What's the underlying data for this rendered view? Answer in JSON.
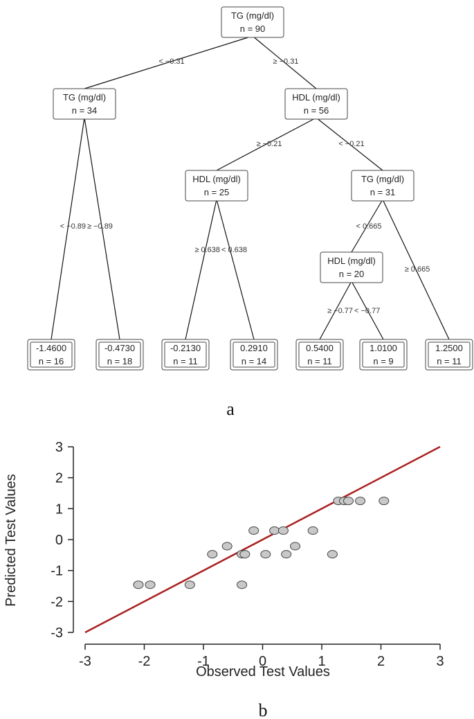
{
  "tree": {
    "panel_label": "a",
    "nodes": [
      {
        "id": "n1",
        "lines": [
          "TG (mg/dl)",
          "n = 90"
        ]
      },
      {
        "id": "n2",
        "lines": [
          "TG (mg/dl)",
          "n = 34"
        ]
      },
      {
        "id": "n3",
        "lines": [
          "HDL (mg/dl)",
          "n = 56"
        ]
      },
      {
        "id": "n4",
        "lines": [
          "HDL (mg/dl)",
          "n = 25"
        ]
      },
      {
        "id": "n5",
        "lines": [
          "TG (mg/dl)",
          "n = 31"
        ]
      },
      {
        "id": "n6",
        "lines": [
          "HDL (mg/dl)",
          "n = 20"
        ]
      },
      {
        "id": "l1",
        "leaf": true,
        "lines": [
          "-1.4600",
          "n = 16"
        ]
      },
      {
        "id": "l2",
        "leaf": true,
        "lines": [
          "-0.4730",
          "n = 18"
        ]
      },
      {
        "id": "l3",
        "leaf": true,
        "lines": [
          "-0.2130",
          "n = 11"
        ]
      },
      {
        "id": "l4",
        "leaf": true,
        "lines": [
          "0.2910",
          "n = 14"
        ]
      },
      {
        "id": "l5",
        "leaf": true,
        "lines": [
          "0.5400",
          "n = 11"
        ]
      },
      {
        "id": "l6",
        "leaf": true,
        "lines": [
          "1.0100",
          "n = 9"
        ]
      },
      {
        "id": "l7",
        "leaf": true,
        "lines": [
          "1.2500",
          "n = 11"
        ]
      }
    ],
    "edges": [
      {
        "from": "n1",
        "to": "n2",
        "label": "< −0.31"
      },
      {
        "from": "n1",
        "to": "n3",
        "label": "≥ −0.31"
      },
      {
        "from": "n2",
        "to": "l1",
        "label": "< −0.89"
      },
      {
        "from": "n2",
        "to": "l2",
        "label": "≥ −0.89"
      },
      {
        "from": "n3",
        "to": "n4",
        "label": "≥ −0.21"
      },
      {
        "from": "n3",
        "to": "n5",
        "label": "< −0.21"
      },
      {
        "from": "n4",
        "to": "l3",
        "label": "≥ 0.638"
      },
      {
        "from": "n4",
        "to": "l4",
        "label": "< 0.638"
      },
      {
        "from": "n5",
        "to": "n6",
        "label": "< 0.665"
      },
      {
        "from": "n5",
        "to": "l7",
        "label": "≥ 0.665"
      },
      {
        "from": "n6",
        "to": "l5",
        "label": "≥ −0.77"
      },
      {
        "from": "n6",
        "to": "l6",
        "label": "< −0.77"
      }
    ]
  },
  "chart_data": {
    "type": "scatter",
    "panel_label": "b",
    "title": "",
    "xlabel": "Observed Test Values",
    "ylabel": "Predicted Test Values",
    "xlim": [
      -3,
      3
    ],
    "ylim": [
      -3,
      3
    ],
    "xticks": [
      -3,
      -2,
      -1,
      0,
      1,
      2,
      3
    ],
    "yticks": [
      -3,
      -2,
      -1,
      0,
      1,
      2,
      3
    ],
    "grid": false,
    "legend": "none",
    "point_color": "#c8c8c8",
    "line_color": "#aa1f1f",
    "reference_line": {
      "x": [
        -3,
        3
      ],
      "y": [
        -3,
        3
      ]
    },
    "series": [
      {
        "x": [
          -2.1,
          -1.9,
          -1.23,
          -0.85,
          -0.6,
          -0.35,
          -0.3,
          -0.35,
          -0.15,
          0.05,
          0.2,
          0.35,
          0.4,
          0.55,
          0.85,
          1.18,
          1.28,
          1.38,
          1.45,
          1.65,
          2.05
        ],
        "y": [
          -1.46,
          -1.46,
          -1.46,
          -0.473,
          -0.213,
          -0.473,
          -0.473,
          -1.46,
          0.291,
          -0.473,
          0.291,
          0.291,
          -0.473,
          -0.213,
          0.291,
          -0.473,
          1.25,
          1.25,
          1.25,
          1.25,
          1.25
        ]
      }
    ]
  }
}
